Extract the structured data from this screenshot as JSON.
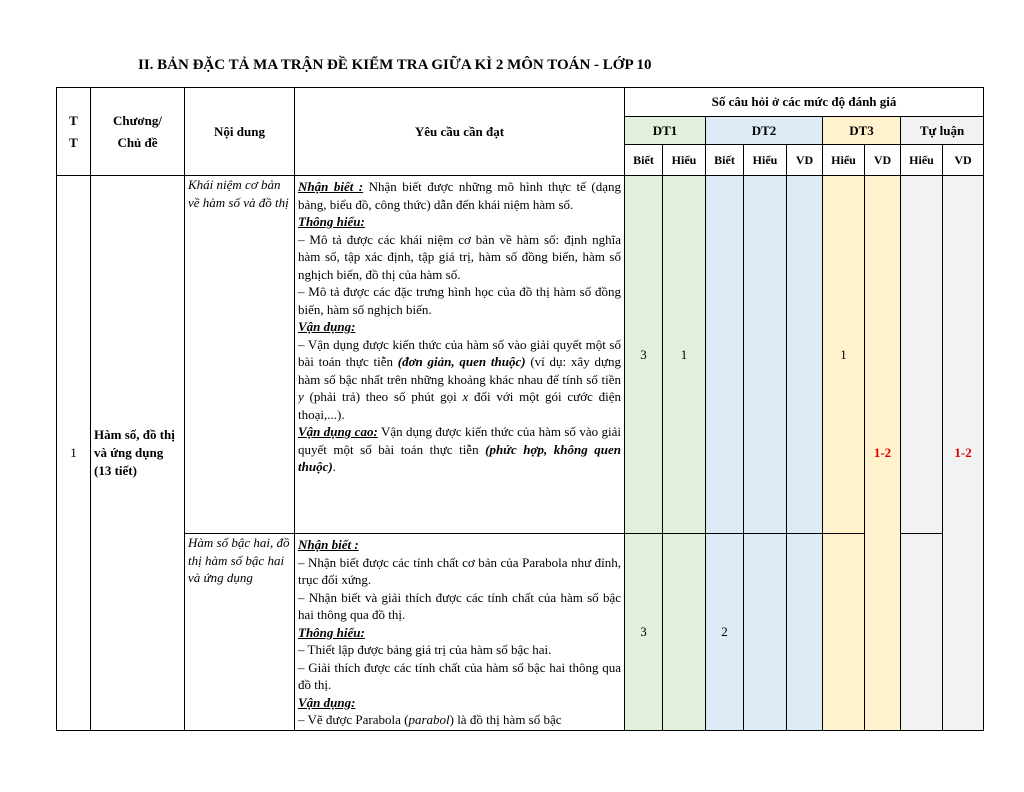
{
  "title": "II. BẢN ĐẶC TẢ MA TRẬN ĐỀ KIỂM TRA GIỮA KÌ 2 MÔN TOÁN - LỚP 10",
  "table": {
    "header": {
      "tt": "T\nT",
      "chapter": "Chương/\nChủ đề",
      "content": "Nội dung",
      "requirement": "Yêu cầu cần đạt",
      "levels": "Số câu hỏi ở các mức độ đánh giá"
    },
    "groups": [
      {
        "name": "DT1",
        "color": "#e2efda",
        "levels": [
          "Biết",
          "Hiểu"
        ]
      },
      {
        "name": "DT2",
        "color": "#ddebf7",
        "levels": [
          "Biết",
          "Hiểu",
          "VD"
        ]
      },
      {
        "name": "DT3",
        "color": "#fff2cc",
        "levels": [
          "Hiểu",
          "VD"
        ]
      },
      {
        "name": "Tự luận",
        "color": "#f2f2f2",
        "levels": [
          "Hiểu",
          "VD"
        ]
      }
    ],
    "topics": [
      {
        "tt": "1",
        "name": "Hàm số, đồ thị và ứng dụng (13 tiết)",
        "contents": [
          {
            "name": "Khái niệm cơ bản về hàm số và đồ thị",
            "requirements": [
              [
                {
                  "h": "Nhận biết :"
                },
                " Nhận biết được những mô hình thực tế (dạng bảng, biểu đồ, công thức) dẫn đến khái niệm hàm số."
              ],
              [
                {
                  "h": "Thông hiểu:"
                }
              ],
              [
                "– Mô tả được các khái niệm cơ bản về hàm số: định nghĩa hàm số, tập xác định, tập giá trị, hàm số đồng biến, hàm số nghịch biến, đồ thị của hàm số."
              ],
              [
                "– Mô tả được các đặc trưng hình học của đồ thị hàm số đồng biến, hàm số nghịch biến."
              ],
              [
                {
                  "h": "Vận dụng:"
                }
              ],
              [
                "– Vận dụng được kiến thức của hàm số vào giải quyết một số bài toán thực tiễn ",
                {
                  "b": "(đơn giản, quen thuộc)"
                },
                " (ví dụ: xây dựng hàm số bậc nhất trên những khoảng khác nhau để tính số tiền ",
                {
                  "i": "y"
                },
                " (phải trả) theo số phút gọi ",
                {
                  "i": "x"
                },
                " đối với một gói cước điện thoại,...)."
              ],
              [
                {
                  "h": "Vận dụng cao:"
                },
                " Vận dụng được kiến thức của hàm số vào giải quyết một số bài toán thực tiễn ",
                {
                  "b": "(phức hợp, không quen thuộc)"
                },
                "."
              ]
            ],
            "counts": [
              3,
              1,
              null,
              null,
              null,
              1,
              "1-2",
              null,
              "1-2"
            ]
          },
          {
            "name": "Hàm số bậc hai, đồ thị hàm số bậc hai và ứng dụng",
            "requirements": [
              [
                {
                  "h": "Nhận biết :"
                }
              ],
              [
                "– Nhận biết được các tính chất cơ bản của Parabola như đỉnh, trục đối xứng."
              ],
              [
                "– Nhận biết và giải thích được các tính chất của hàm số bậc hai thông qua đồ thị."
              ],
              [
                {
                  "h": "Thông hiểu:"
                }
              ],
              [
                "– Thiết lập được bảng giá trị của hàm số bậc hai."
              ],
              [
                "– Giải thích được các tính chất của hàm số bậc hai thông qua đồ thị."
              ],
              [
                {
                  "h": "Vận dụng:"
                }
              ],
              [
                "– Vẽ được Parabola (",
                {
                  "i": "parabol"
                },
                ") là đồ thị hàm số bậc"
              ]
            ],
            "counts": [
              3,
              null,
              2,
              null,
              null,
              null,
              null,
              null,
              null
            ]
          }
        ]
      }
    ]
  }
}
